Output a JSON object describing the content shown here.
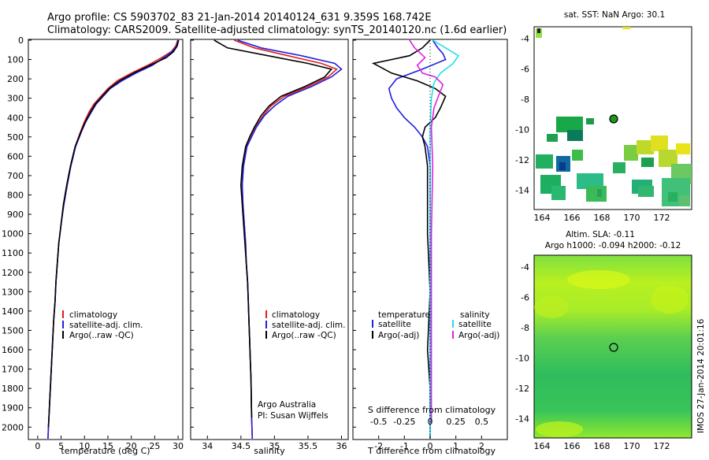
{
  "title_line1": "Argo profile: CS 5903702_83 21-Jan-2014 20140124_631 9.359S 168.742E",
  "title_line2": "Climatology: CARS2009. Satellite-adjusted climatology: synTS_20140120.nc (1.6d earlier)",
  "colors": {
    "clim": "#e02020",
    "sat": "#2020e0",
    "argo": "#000000",
    "sat_sal": "#20e0e8",
    "argo_sal": "#e020e0"
  },
  "panels": {
    "temp": {
      "xlabel": "temperature (deg C)",
      "xticks": [
        "0",
        "5",
        "10",
        "15",
        "20",
        "25",
        "30"
      ],
      "legend": [
        "climatology",
        "satellite-adj. clim.",
        "Argo(..raw -QC)"
      ]
    },
    "sal": {
      "xlabel": "salinity",
      "xticks": [
        "34",
        "34.5",
        "35",
        "35.5",
        "36"
      ],
      "legend": [
        "climatology",
        "satellite-adj. clim.",
        "Argo(..raw -QC)"
      ],
      "note1": "Argo Australia",
      "note2": "PI: Susan Wijffels"
    },
    "diff": {
      "xlabel": "T difference from climatology",
      "top_label": "S difference from climatology",
      "xticks": [
        "-2",
        "-1",
        "0",
        "1",
        "2"
      ],
      "sticks": [
        "-0.5",
        "-0.25",
        "0",
        "0.25",
        "0.5"
      ],
      "legend_temp_head": "temperature",
      "legend_sal_head": "salinity",
      "legend_temp": [
        "satellite",
        "Argo(-adj)"
      ],
      "legend_sal": [
        "satellite",
        "Argo(-adj)"
      ]
    }
  },
  "depth_ticks": [
    "0",
    "100",
    "200",
    "300",
    "400",
    "500",
    "600",
    "700",
    "800",
    "900",
    "1000",
    "1100",
    "1200",
    "1300",
    "1400",
    "1500",
    "1600",
    "1700",
    "1800",
    "1900",
    "2000"
  ],
  "map1": {
    "title": "sat. SST: NaN Argo: 30.1",
    "yticks": [
      "-4",
      "-6",
      "-8",
      "-10",
      "-12",
      "-14"
    ],
    "xticks": [
      "164",
      "166",
      "168",
      "170",
      "172"
    ]
  },
  "map2": {
    "title1": "Altim. SLA: -0.11",
    "title2": "Argo h1000: -0.094 h2000: -0.12",
    "yticks": [
      "-4",
      "-6",
      "-8",
      "-10",
      "-12",
      "-14"
    ],
    "xticks": [
      "164",
      "166",
      "168",
      "170",
      "172"
    ]
  },
  "footer": "IMOS 27-Jan-2014 20:01:16",
  "chart_data": [
    {
      "type": "line",
      "title": "",
      "xlabel": "temperature (deg C)",
      "ylabel": "",
      "xlim": [
        -2,
        31
      ],
      "ylim": [
        2060,
        0
      ],
      "series": [
        {
          "name": "climatology",
          "x": [
            29.9,
            29.5,
            28.5,
            26.5,
            23.5,
            20,
            17,
            15,
            13.5,
            12,
            11,
            10,
            9.2,
            8,
            7,
            6.2,
            5.5,
            5,
            4.5,
            4.2,
            3.9,
            3.7,
            3.4,
            3.2,
            3,
            2.8,
            2.6,
            2.4,
            2.3,
            2.2
          ],
          "y": [
            0,
            30,
            60,
            90,
            130,
            170,
            210,
            250,
            290,
            330,
            370,
            420,
            470,
            550,
            650,
            750,
            850,
            950,
            1050,
            1150,
            1250,
            1350,
            1450,
            1550,
            1650,
            1750,
            1850,
            1950,
            2000,
            2060
          ]
        },
        {
          "name": "satellite-adj. clim.",
          "x": [
            30,
            29.7,
            28.7,
            27,
            24.5,
            21,
            18,
            15.5,
            14,
            12.5,
            11.5,
            10.3,
            9.4,
            8.1,
            7.1,
            6.3,
            5.6,
            5,
            4.5,
            4.2,
            3.9,
            3.7,
            3.4,
            3.2,
            3,
            2.8,
            2.6,
            2.4,
            2.3,
            2.2
          ],
          "y": [
            0,
            30,
            60,
            90,
            130,
            170,
            210,
            250,
            290,
            330,
            370,
            420,
            470,
            550,
            650,
            750,
            850,
            950,
            1050,
            1150,
            1250,
            1350,
            1450,
            1550,
            1650,
            1750,
            1850,
            1950,
            2000,
            2060
          ]
        },
        {
          "name": "Argo(..raw -QC)",
          "x": [
            30.1,
            29.8,
            29,
            27.5,
            24,
            20.5,
            17.5,
            15.3,
            13.8,
            12.3,
            11.3,
            10.2,
            9.3,
            8,
            7,
            6.2,
            5.5,
            5,
            4.5,
            4.2,
            3.9,
            3.7,
            3.4,
            3.2,
            3,
            2.8,
            2.6,
            2.4,
            2.3
          ],
          "y": [
            0,
            30,
            60,
            90,
            130,
            170,
            210,
            250,
            290,
            330,
            370,
            420,
            470,
            550,
            650,
            750,
            850,
            950,
            1050,
            1150,
            1250,
            1350,
            1450,
            1550,
            1650,
            1750,
            1850,
            1950,
            2000
          ]
        }
      ]
    },
    {
      "type": "line",
      "title": "",
      "xlabel": "salinity",
      "xlim": [
        33.75,
        36.1
      ],
      "ylim": [
        2060,
        0
      ],
      "series": [
        {
          "name": "climatology",
          "x": [
            34.4,
            34.7,
            35.2,
            35.7,
            35.93,
            35.8,
            35.5,
            35.15,
            34.95,
            34.83,
            34.72,
            34.65,
            34.58,
            34.53,
            34.52,
            34.53,
            34.55,
            34.57,
            34.58,
            34.6,
            34.61,
            34.62,
            34.63,
            34.64,
            34.65,
            34.66,
            34.67
          ],
          "y": [
            0,
            40,
            80,
            120,
            150,
            190,
            240,
            290,
            340,
            390,
            450,
            500,
            550,
            650,
            750,
            850,
            950,
            1050,
            1150,
            1250,
            1350,
            1450,
            1550,
            1650,
            1750,
            1950,
            2060
          ]
        },
        {
          "name": "satellite-adj. clim.",
          "x": [
            34.45,
            34.8,
            35.4,
            35.9,
            36.0,
            35.85,
            35.55,
            35.2,
            35.0,
            34.85,
            34.73,
            34.66,
            34.59,
            34.54,
            34.52,
            34.53,
            34.55,
            34.57,
            34.58,
            34.6,
            34.61,
            34.62,
            34.63,
            34.64,
            34.65,
            34.66,
            34.67
          ],
          "y": [
            0,
            40,
            80,
            120,
            150,
            190,
            240,
            290,
            340,
            390,
            450,
            500,
            550,
            650,
            750,
            850,
            950,
            1050,
            1150,
            1250,
            1350,
            1450,
            1550,
            1650,
            1750,
            1950,
            2060
          ]
        },
        {
          "name": "Argo(..raw -QC)",
          "x": [
            34.1,
            34.3,
            34.9,
            35.5,
            35.85,
            35.75,
            35.45,
            35.1,
            34.92,
            34.8,
            34.7,
            34.63,
            34.57,
            34.52,
            34.5,
            34.52,
            34.54,
            34.56,
            34.58,
            34.6,
            34.61,
            34.62,
            34.63,
            34.64,
            34.65,
            34.66
          ],
          "y": [
            0,
            40,
            80,
            120,
            150,
            190,
            240,
            290,
            340,
            390,
            450,
            500,
            550,
            650,
            750,
            850,
            950,
            1050,
            1150,
            1250,
            1350,
            1450,
            1550,
            1650,
            1750,
            1950
          ]
        }
      ]
    },
    {
      "type": "line",
      "title": "",
      "xlabel": "T difference from climatology",
      "xlim": [
        -3,
        3
      ],
      "ylim": [
        2060,
        0
      ],
      "series": [
        {
          "name": "temperature satellite",
          "x": [
            0.1,
            0.3,
            0.5,
            0.6,
            -0.3,
            -1.3,
            -1.6,
            -1.5,
            -1.3,
            -1.0,
            -0.6,
            -0.3,
            -0.1,
            0,
            0,
            0,
            0,
            0,
            0,
            0,
            0
          ],
          "y": [
            0,
            40,
            70,
            100,
            150,
            200,
            250,
            300,
            350,
            400,
            450,
            500,
            550,
            650,
            800,
            1000,
            1200,
            1400,
            1600,
            1800,
            2060
          ]
        },
        {
          "name": "temperature Argo(-adj)",
          "x": [
            0,
            -0.3,
            -0.8,
            -2.2,
            -1.5,
            -0.5,
            0.2,
            0.6,
            0.4,
            0.2,
            -0.2,
            -0.3,
            -0.2,
            -0.1,
            -0.1,
            -0.1,
            0,
            -0.1,
            0,
            0
          ],
          "y": [
            0,
            40,
            80,
            120,
            170,
            210,
            250,
            290,
            350,
            400,
            450,
            500,
            550,
            650,
            800,
            1000,
            1300,
            1600,
            1800,
            1980
          ]
        },
        {
          "name": "salinity satellite",
          "x": [
            0.1,
            0.6,
            1.1,
            0.9,
            0.4,
            0.15,
            0.05,
            0,
            0,
            0,
            0,
            0
          ],
          "y": [
            0,
            40,
            80,
            120,
            170,
            220,
            300,
            450,
            650,
            1000,
            1600,
            2060
          ]
        },
        {
          "name": "salinity Argo(-adj)",
          "x": [
            -0.8,
            -0.6,
            -0.2,
            -0.5,
            -0.3,
            0.2,
            0.5,
            0.35,
            0.15,
            0.05,
            0.1,
            0.05,
            0.05,
            0.05
          ],
          "y": [
            0,
            40,
            90,
            130,
            170,
            190,
            230,
            280,
            350,
            450,
            650,
            1000,
            1400,
            1980
          ]
        }
      ]
    }
  ]
}
